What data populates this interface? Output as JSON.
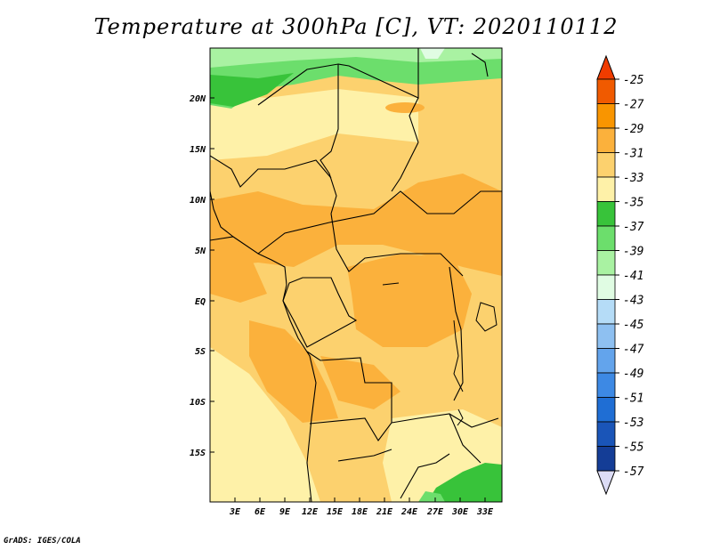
{
  "title": "Temperature at 300hPa [C], VT: 2020110112",
  "credit": "GrADS: IGES/COLA",
  "map": {
    "lat_labels": [
      "20N",
      "15N",
      "10N",
      "5N",
      "EQ",
      "5S",
      "10S",
      "15S"
    ],
    "lon_labels": [
      "3E",
      "6E",
      "9E",
      "12E",
      "15E",
      "18E",
      "21E",
      "24E",
      "27E",
      "30E",
      "33E"
    ]
  },
  "colorbar": {
    "labels": [
      "-25",
      "-27",
      "-29",
      "-31",
      "-33",
      "-35",
      "-37",
      "-39",
      "-41",
      "-43",
      "-45",
      "-47",
      "-49",
      "-51",
      "-53",
      "-55",
      "-57"
    ],
    "colors": [
      "#f05a00",
      "#f99500",
      "#fbb13c",
      "#fcd16e",
      "#fef1a8",
      "#38c33a",
      "#6cde6c",
      "#a9f2a2",
      "#e0fce3",
      "#b5dcf7",
      "#8ec0f1",
      "#63a4ec",
      "#3d89e4",
      "#1f6ed4",
      "#1a55b8",
      "#143d96",
      "#0d1e74"
    ],
    "top_color": "#f03c00",
    "bottom_color": "#dcdcf5"
  }
}
